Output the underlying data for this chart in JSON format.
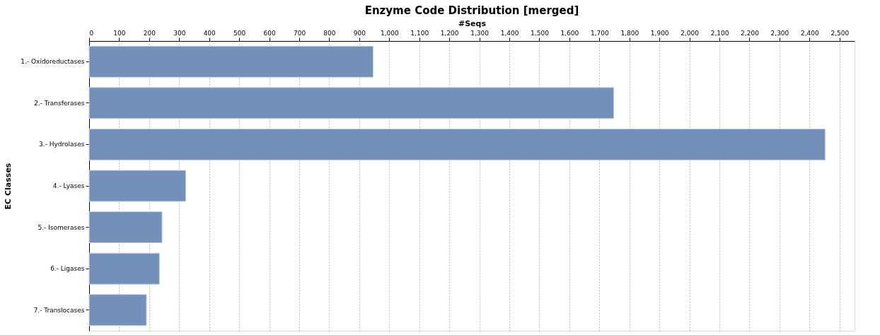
{
  "chart_data": {
    "type": "bar",
    "orientation": "horizontal",
    "title": "Enzyme Code Distribution [merged]",
    "xlabel": "#Seqs",
    "ylabel": "EC Classes",
    "categories": [
      "1.- Oxidoreductases",
      "2.- Transferases",
      "3.- Hydrolases",
      "4.- Lyases",
      "5.- Isomerases",
      "6.- Ligases",
      "7.- Translocases"
    ],
    "values": [
      946,
      1748,
      2452,
      322,
      243,
      234,
      191
    ],
    "color": "#7290b8",
    "xlim": [
      0,
      2550
    ],
    "xticks": [
      0,
      100,
      200,
      300,
      400,
      500,
      600,
      700,
      800,
      900,
      {
        "value": 1000,
        "label": "1,000"
      },
      {
        "value": 1100,
        "label": "1,100"
      },
      {
        "value": 1200,
        "label": "1,200"
      },
      {
        "value": 1300,
        "label": "1,300"
      },
      {
        "value": 1400,
        "label": "1,400"
      },
      {
        "value": 1500,
        "label": "1,500"
      },
      {
        "value": 1600,
        "label": "1,600"
      },
      {
        "value": 1700,
        "label": "1,700"
      },
      {
        "value": 1800,
        "label": "1,800"
      },
      {
        "value": 1900,
        "label": "1,900"
      },
      {
        "value": 2000,
        "label": "2,000"
      },
      {
        "value": 2100,
        "label": "2,100"
      },
      {
        "value": 2200,
        "label": "2,200"
      },
      {
        "value": 2300,
        "label": "2,300"
      },
      {
        "value": 2400,
        "label": "2,400"
      },
      {
        "value": 2500,
        "label": "2,500"
      }
    ],
    "grid": "x"
  }
}
